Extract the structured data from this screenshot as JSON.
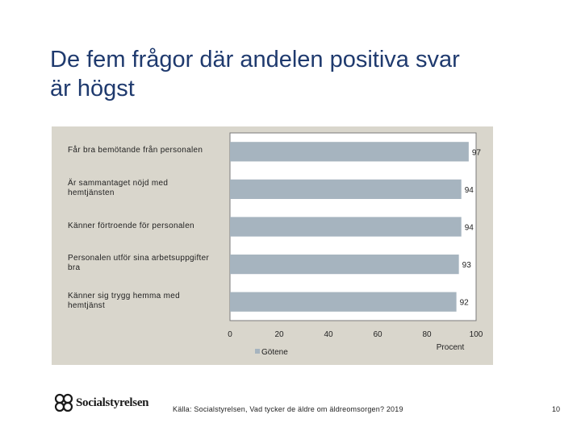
{
  "slide": {
    "title_line1": "De fem frågor där andelen positiva svar",
    "title_line2": "är högst",
    "source": "Källa: Socialstyrelsen, Vad tycker de äldre om äldreomsorgen? 2019",
    "page_number": "10",
    "logo_text": "Socialstyrelsen"
  },
  "colors": {
    "title": "#1f3a6e",
    "panel_background": "#d9d6cc",
    "plot_background": "#ffffff",
    "bar": "#a6b4bf"
  },
  "chart_data": {
    "type": "bar",
    "orientation": "horizontal",
    "categories": [
      "Får bra bemötande från personalen",
      "Är sammantaget nöjd med hemtjänsten",
      "Känner förtroende för personalen",
      "Personalen utför sina arbetsuppgifter bra",
      "Känner sig trygg hemma med hemtjänst"
    ],
    "category_labels": [
      [
        "Får bra bemötande från personalen"
      ],
      [
        "Är sammantaget nöjd med",
        "hemtjänsten"
      ],
      [
        "Känner förtroende för personalen"
      ],
      [
        "Personalen utför sina arbetsuppgifter",
        "bra"
      ],
      [
        "Känner sig trygg hemma med",
        "hemtjänst"
      ]
    ],
    "series": [
      {
        "name": "Götene",
        "values": [
          97,
          94,
          94,
          93,
          92
        ]
      }
    ],
    "data_labels": [
      "97",
      "94",
      "94",
      "93",
      "92"
    ],
    "xlim": [
      0,
      100
    ],
    "xticks": [
      "0",
      "20",
      "40",
      "60",
      "80",
      "100"
    ],
    "xtick_values": [
      0,
      20,
      40,
      60,
      80,
      100
    ],
    "xlabel": "Procent",
    "legend": "bottom-left",
    "grid": false
  }
}
